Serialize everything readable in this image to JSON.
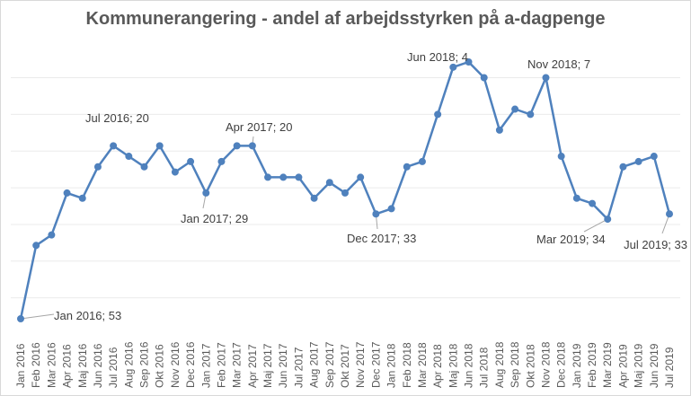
{
  "chart_data": {
    "type": "line",
    "title": "Kommunerangering - andel af arbejdsstyrken på a-dagpenge",
    "xlabel": "",
    "ylabel": "",
    "ylim": [
      0,
      56
    ],
    "y_reversed": true,
    "grid": "horizontal",
    "color": "#4F81BD",
    "categories": [
      "Jan 2016",
      "Feb 2016",
      "Mar 2016",
      "Apr 2016",
      "Maj 2016",
      "Jun 2016",
      "Jul 2016",
      "Aug 2016",
      "Sep 2016",
      "Okt 2016",
      "Nov 2016",
      "Dec 2016",
      "Jan 2017",
      "Feb 2017",
      "Mar 2017",
      "Apr 2017",
      "Maj 2017",
      "Jun 2017",
      "Jul 2017",
      "Aug 2017",
      "Sep 2017",
      "Okt 2017",
      "Nov 2017",
      "Dec 2017",
      "Jan 2018",
      "Feb 2018",
      "Mar 2018",
      "Apr 2018",
      "Maj 2018",
      "Jun 2018",
      "Jul 2018",
      "Aug 2018",
      "Sep 2018",
      "Okt 2018",
      "Nov 2018",
      "Dec 2018",
      "Jan 2019",
      "Feb 2019",
      "Mar 2019",
      "Apr 2019",
      "Maj 2019",
      "Jun 2019",
      "Jul 2019"
    ],
    "values": [
      53,
      39,
      37,
      29,
      30,
      24,
      20,
      22,
      24,
      20,
      25,
      23,
      29,
      23,
      20,
      20,
      26,
      26,
      26,
      30,
      27,
      29,
      26,
      33,
      32,
      24,
      23,
      14,
      5,
      4,
      7,
      17,
      13,
      14,
      7,
      22,
      30,
      31,
      34,
      24,
      23,
      22,
      33
    ],
    "data_labels": [
      {
        "index": 0,
        "text": "Jan 2016; 53"
      },
      {
        "index": 6,
        "text": "Jul 2016; 20"
      },
      {
        "index": 12,
        "text": "Jan 2017; 29"
      },
      {
        "index": 15,
        "text": "Apr 2017; 20"
      },
      {
        "index": 23,
        "text": "Dec 2017; 33"
      },
      {
        "index": 29,
        "text": "Jun 2018; 4"
      },
      {
        "index": 34,
        "text": "Nov 2018; 7"
      },
      {
        "index": 38,
        "text": "Mar 2019; 34"
      },
      {
        "index": 42,
        "text": "Jul 2019; 33"
      }
    ]
  }
}
